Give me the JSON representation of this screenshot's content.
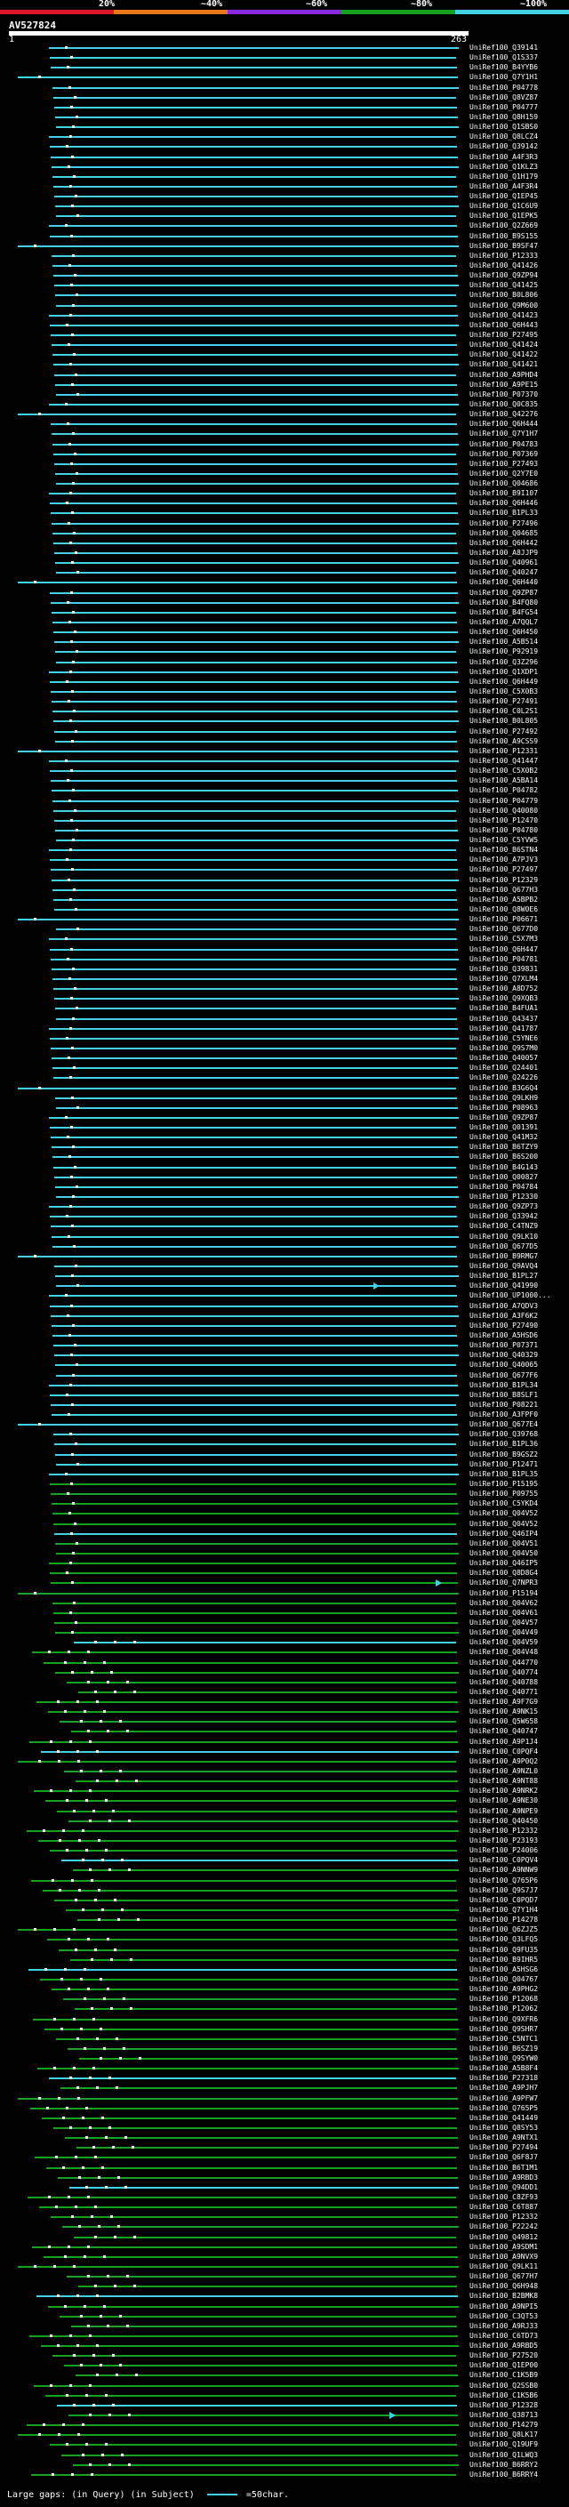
{
  "legend": {
    "labels": [
      "20%",
      "~40%",
      "~60%",
      "~80%",
      "~100%"
    ],
    "colors": [
      "#e0142a",
      "#e87818",
      "#8a2be2",
      "#16a21f",
      "#41d1e6"
    ]
  },
  "query": {
    "title": "AV527824",
    "start": "1",
    "end": "263"
  },
  "hits": [
    "UniRef100_Q39141",
    "UniRef100_Q1S337",
    "UniRef100_B4YYB6",
    "UniRef100_Q7Y1H1",
    "UniRef100_P04778",
    "UniRef100_Q8VZ87",
    "UniRef100_P04777",
    "UniRef100_Q8H159",
    "UniRef100_Q1SBS0",
    "UniRef100_Q8LCZ4",
    "UniRef100_Q39142",
    "UniRef100_A4F3R3",
    "UniRef100_Q1KLZ3",
    "UniRef100_Q1H179",
    "UniRef100_A4F3R4",
    "UniRef100_Q1EP45",
    "UniRef100_Q1C6U9",
    "UniRef100_Q1EPK5",
    "UniRef100_Q2Z669",
    "UniRef100_B9S155",
    "UniRef100_B9SF47",
    "UniRef100_P12333",
    "UniRef100_Q41426",
    "UniRef100_Q9ZP94",
    "UniRef100_Q41425",
    "UniRef100_B0L806",
    "UniRef100_Q9M600",
    "UniRef100_Q41423",
    "UniRef100_Q6H443",
    "UniRef100_P27495",
    "UniRef100_Q41424",
    "UniRef100_Q41422",
    "UniRef100_Q41421",
    "UniRef100_A9PHD4",
    "UniRef100_A9PE15",
    "UniRef100_P07370",
    "UniRef100_Q0C835",
    "UniRef100_Q42276",
    "UniRef100_Q6H444",
    "UniRef100_Q7Y1H7",
    "UniRef100_P04783",
    "UniRef100_P07369",
    "UniRef100_P27493",
    "UniRef100_Q2Y7E0",
    "UniRef100_Q04686",
    "UniRef100_B9I107",
    "UniRef100_Q6H446",
    "UniRef100_B1PL33",
    "UniRef100_P27496",
    "UniRef100_Q04685",
    "UniRef100_Q6H442",
    "UniRef100_A8JJP9",
    "UniRef100_Q40961",
    "UniRef100_Q40247",
    "UniRef100_Q6H440",
    "UniRef100_Q9ZP87",
    "UniRef100_B4FQ80",
    "UniRef100_B4FG54",
    "UniRef100_A7QQL7",
    "UniRef100_Q6H450",
    "UniRef100_A5B514",
    "UniRef100_P92919",
    "UniRef100_Q3Z296",
    "UniRef100_Q1XDP1",
    "UniRef100_Q6H449",
    "UniRef100_C5X0B3",
    "UniRef100_P27491",
    "UniRef100_C0L2S1",
    "UniRef100_B0L805",
    "UniRef100_P27492",
    "UniRef100_A9CSS9",
    "UniRef100_P12331",
    "UniRef100_Q41447",
    "UniRef100_C5X0B2",
    "UniRef100_A5BA14",
    "UniRef100_P04782",
    "UniRef100_P04779",
    "UniRef100_Q40080",
    "UniRef100_P12470",
    "UniRef100_P04780",
    "UniRef100_C5YVW5",
    "UniRef100_B6STN4",
    "UniRef100_A7PJV3",
    "UniRef100_P27497",
    "UniRef100_P12329",
    "UniRef100_Q677H3",
    "UniRef100_A5BPB2",
    "UniRef100_Q8W0E6",
    "UniRef100_P06671",
    "UniRef100_Q677D0",
    "UniRef100_C5X7M3",
    "UniRef100_Q6H447",
    "UniRef100_P04781",
    "UniRef100_Q39831",
    "UniRef100_Q7XLM4",
    "UniRef100_A8D752",
    "UniRef100_Q9XQB3",
    "UniRef100_B4FUA1",
    "UniRef100_Q43437",
    "UniRef100_Q41787",
    "UniRef100_C5YNE6",
    "UniRef100_Q9S7M0",
    "UniRef100_Q40057",
    "UniRef100_Q24401",
    "UniRef100_Q24226",
    "UniRef100_B3G6Q4",
    "UniRef100_Q9LKH9",
    "UniRef100_P08963",
    "UniRef100_Q9ZP87",
    "UniRef100_Q01391",
    "UniRef100_Q41M32",
    "UniRef100_B6TZY9",
    "UniRef100_B6S200",
    "UniRef100_B4G143",
    "UniRef100_Q00827",
    "UniRef100_P04784",
    "UniRef100_P12330",
    "UniRef100_Q9ZP73",
    "UniRef100_Q33942",
    "UniRef100_C4TNZ9",
    "UniRef100_Q9LK10",
    "UniRef100_Q677D5",
    "UniRef100_B9RMG7",
    "UniRef100_Q9AVQ4",
    "UniRef100_B1PL27",
    "UniRef100_Q41990",
    "UniRef100_UP1000...",
    "UniRef100_A7QDV3",
    "UniRef100_A3F6K2",
    "UniRef100_P27490",
    "UniRef100_A5HSD6",
    "UniRef100_P07371",
    "UniRef100_Q40329",
    "UniRef100_Q40065",
    "UniRef100_Q677F6",
    "UniRef100_B1PL34",
    "UniRef100_B8SLF1",
    "UniRef100_P08221",
    "UniRef100_A3FPF0",
    "UniRef100_Q677E4",
    "UniRef100_Q39768",
    "UniRef100_B1PL36",
    "UniRef100_B9GSZ2",
    "UniRef100_P12471",
    "UniRef100_B1PL35",
    "UniRef100_P15195",
    "UniRef100_P09755",
    "UniRef100_C5YKD4",
    "UniRef100_Q04V52",
    "UniRef100_Q04V52",
    "UniRef100_Q46IP4",
    "UniRef100_Q04V51",
    "UniRef100_Q04V50",
    "UniRef100_Q46IP5",
    "UniRef100_Q8D8G4",
    "UniRef100_Q7NPR3",
    "UniRef100_P15194",
    "UniRef100_Q04V62",
    "UniRef100_Q04V61",
    "UniRef100_Q04V57",
    "UniRef100_Q04V49",
    "UniRef100_Q04V59",
    "UniRef100_Q04V48",
    "UniRef100_Q44770",
    "UniRef100_Q40774",
    "UniRef100_Q40788",
    "UniRef100_Q40771",
    "UniRef100_A9F7G9",
    "UniRef100_A9NK15",
    "UniRef100_Q5W658",
    "UniRef100_Q40747",
    "UniRef100_A9P1J4",
    "UniRef100_C0PQF4",
    "UniRef100_A9P0Q2",
    "UniRef100_A9NZL0",
    "UniRef100_A9NT88",
    "UniRef100_A9NRK2",
    "UniRef100_A9NE30",
    "UniRef100_A9NPE9",
    "UniRef100_Q40450",
    "UniRef100_P12332",
    "UniRef100_P23193",
    "UniRef100_P24006",
    "UniRef100_C0PQV4",
    "UniRef100_A9NNW9",
    "UniRef100_Q765P6",
    "UniRef100_Q9S7J7",
    "UniRef100_C0PQD7",
    "UniRef100_Q7Y1H4",
    "UniRef100_P14278",
    "UniRef100_Q6ZJZ5",
    "UniRef100_Q3LFQ5",
    "UniRef100_Q9FU35",
    "UniRef100_B9IHR5",
    "UniRef100_A5HSG6",
    "UniRef100_Q04767",
    "UniRef100_A9PHG2",
    "UniRef100_P12068",
    "UniRef100_P12062",
    "UniRef100_Q9XFR6",
    "UniRef100_Q9SHR7",
    "UniRef100_C5NTC1",
    "UniRef100_B6SZ19",
    "UniRef100_Q9SYW0",
    "UniRef100_A5B8F4",
    "UniRef100_P27318",
    "UniRef100_A9PJH7",
    "UniRef100_A9PFW7",
    "UniRef100_Q765P5",
    "UniRef100_Q41449",
    "UniRef100_Q8SY53",
    "UniRef100_A9NTX1",
    "UniRef100_P27494",
    "UniRef100_Q6F8J7",
    "UniRef100_B6T1M1",
    "UniRef100_A9RBD3",
    "UniRef100_Q94DD1",
    "UniRef100_C8ZF93",
    "UniRef100_C6T887",
    "UniRef100_P12332",
    "UniRef100_P22242",
    "UniRef100_Q49812",
    "UniRef100_A9SDM1",
    "UniRef100_A9NVX9",
    "UniRef100_Q9LK11",
    "UniRef100_Q677H7",
    "UniRef100_Q6H948",
    "UniRef100_B2BMK8",
    "UniRef100_A9NPI5",
    "UniRef100_C3QT53",
    "UniRef100_A9RJ33",
    "UniRef100_C6TD73",
    "UniRef100_A9RBD5",
    "UniRef100_P27520",
    "UniRef100_Q1EP00",
    "UniRef100_C1K5B9",
    "UniRef100_Q2SSB0",
    "UniRef100_C1K5B6",
    "UniRef100_P12328",
    "UniRef100_Q38713",
    "UniRef100_P14279",
    "UniRef100_Q8LK17",
    "UniRef100_Q19UF9",
    "UniRef100_Q1LWQ3",
    "UniRef100_B6RRY2",
    "UniRef100_B6RRY4"
  ],
  "footer": {
    "large_gaps": "Large gaps:",
    "in_query": "(in Query)",
    "in_subject": "(in Subject)",
    "scale": "=50char."
  }
}
